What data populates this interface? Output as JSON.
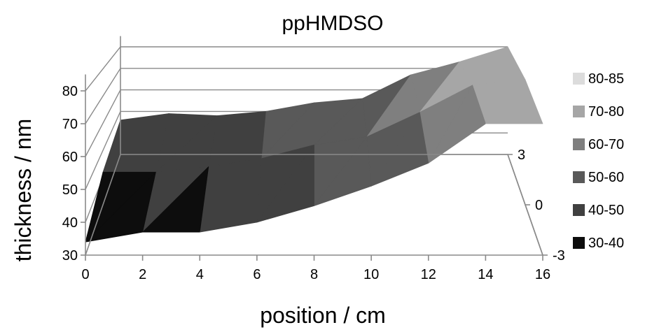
{
  "chart_data": {
    "type": "surface",
    "title": "ppHMDSO",
    "xlabel": "position / cm",
    "ylabel": "thickness / nm",
    "x_ticks": [
      "0",
      "2",
      "4",
      "6",
      "8",
      "10",
      "12",
      "14",
      "16"
    ],
    "y_ticks": [
      "30",
      "40",
      "50",
      "60",
      "70",
      "80"
    ],
    "depth_ticks": [
      "3",
      "0",
      "-3"
    ],
    "xlim": [
      0,
      16
    ],
    "ylim": [
      30,
      85
    ],
    "depth_lim": [
      -3,
      3
    ],
    "grid": true,
    "legend_position": "right",
    "x": [
      0,
      2,
      4,
      6,
      8,
      10,
      12,
      14,
      16
    ],
    "depth": [
      -3,
      0,
      3
    ],
    "z": [
      [
        34,
        37,
        37,
        40,
        45,
        51,
        58,
        70,
        70
      ],
      [
        42,
        42,
        44,
        47,
        52,
        55,
        64,
        74,
        76
      ],
      [
        46,
        49,
        48,
        50,
        54,
        56,
        67,
        73,
        80
      ]
    ],
    "legend": [
      {
        "label": "80-85",
        "color": "#dcdcdc",
        "min": 80,
        "max": 85
      },
      {
        "label": "70-80",
        "color": "#a6a6a6",
        "min": 70,
        "max": 80
      },
      {
        "label": "60-70",
        "color": "#7f7f7f",
        "min": 60,
        "max": 70
      },
      {
        "label": "50-60",
        "color": "#595959",
        "min": 50,
        "max": 60
      },
      {
        "label": "40-50",
        "color": "#404040",
        "min": 40,
        "max": 50
      },
      {
        "label": "30-40",
        "color": "#0d0d0d",
        "min": 30,
        "max": 40
      }
    ]
  }
}
